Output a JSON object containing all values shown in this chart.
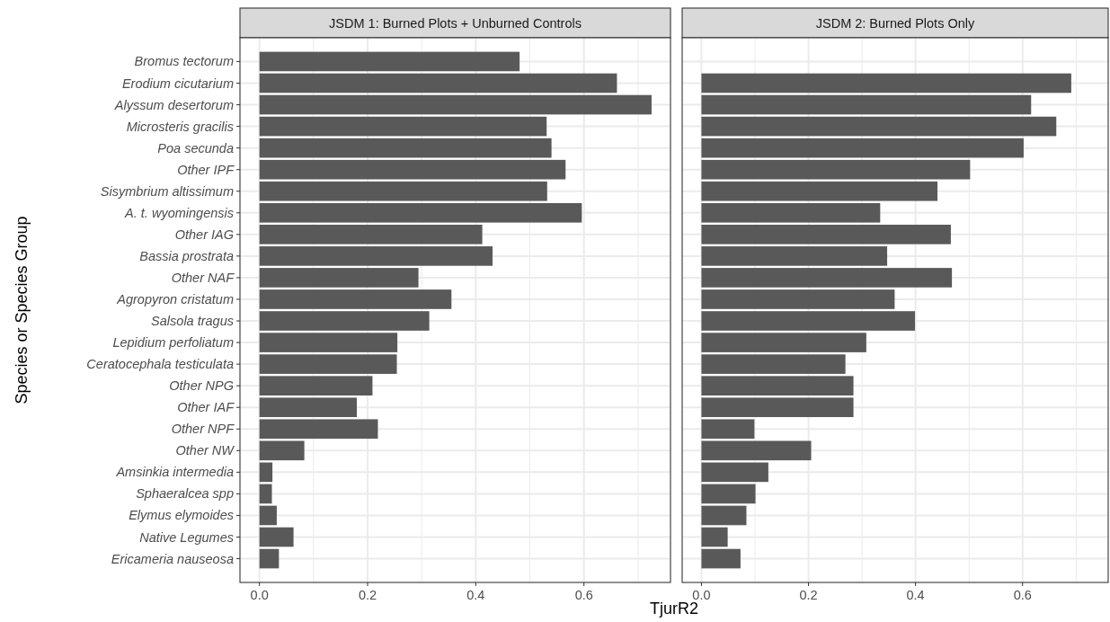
{
  "chart_data": [
    {
      "type": "bar",
      "orientation": "horizontal",
      "title": "JSDM 1: Burned Plots + Unburned Controls",
      "xlabel": "TjurR2",
      "ylabel": "Species or Species Group",
      "categories": [
        "Bromus tectorum",
        "Erodium cicutarium",
        "Alyssum desertorum",
        "Microsteris gracilis",
        "Poa secunda",
        "Other IPF",
        "Sisymbrium altissimum",
        "A. t. wyomingensis",
        "Other IAG",
        "Bassia prostrata",
        "Other NAF",
        "Agropyron cristatum",
        "Salsola tragus",
        "Lepidium perfoliatum",
        "Ceratocephala testiculata",
        "Other NPG",
        "Other IAF",
        "Other NPF",
        "Other NW",
        "Amsinkia intermedia",
        "Sphaeralcea spp",
        "Elymus elymoides",
        "Native Legumes",
        "Ericameria nauseosa"
      ],
      "values": [
        0.481,
        0.661,
        0.725,
        0.531,
        0.54,
        0.566,
        0.532,
        0.596,
        0.412,
        0.431,
        0.294,
        0.355,
        0.314,
        0.255,
        0.254,
        0.209,
        0.18,
        0.219,
        0.083,
        0.024,
        0.023,
        0.032,
        0.063,
        0.036
      ],
      "color": "#595959",
      "xlim": [
        -0.036,
        0.76
      ],
      "xticks": [
        {
          "value": 0,
          "label": "0.0"
        },
        {
          "value": 0.2,
          "label": "0.2"
        },
        {
          "value": 0.4,
          "label": "0.4"
        },
        {
          "value": 0.6,
          "label": "0.6"
        }
      ],
      "grid": true
    },
    {
      "type": "bar",
      "orientation": "horizontal",
      "title": "JSDM 2: Burned Plots Only",
      "categories": [
        null,
        null,
        null,
        null,
        null,
        null,
        null,
        null,
        null,
        null,
        null,
        null,
        null,
        null,
        null,
        null,
        null,
        null,
        null,
        null,
        null,
        null,
        null,
        null
      ],
      "values": [
        null,
        0.691,
        0.616,
        0.663,
        0.602,
        0.502,
        0.441,
        0.334,
        0.466,
        0.347,
        0.468,
        0.361,
        0.399,
        0.308,
        0.269,
        0.284,
        0.284,
        0.099,
        0.205,
        0.125,
        0.101,
        0.084,
        0.049,
        0.073
      ],
      "color": "#595959",
      "xlim": [
        -0.036,
        0.76
      ],
      "xticks": [
        {
          "value": 0,
          "label": "0.0"
        },
        {
          "value": 0.2,
          "label": "0.2"
        },
        {
          "value": 0.4,
          "label": "0.4"
        },
        {
          "value": 0.6,
          "label": "0.6"
        }
      ],
      "grid": true,
      "tick_labels": "x"
    }
  ]
}
